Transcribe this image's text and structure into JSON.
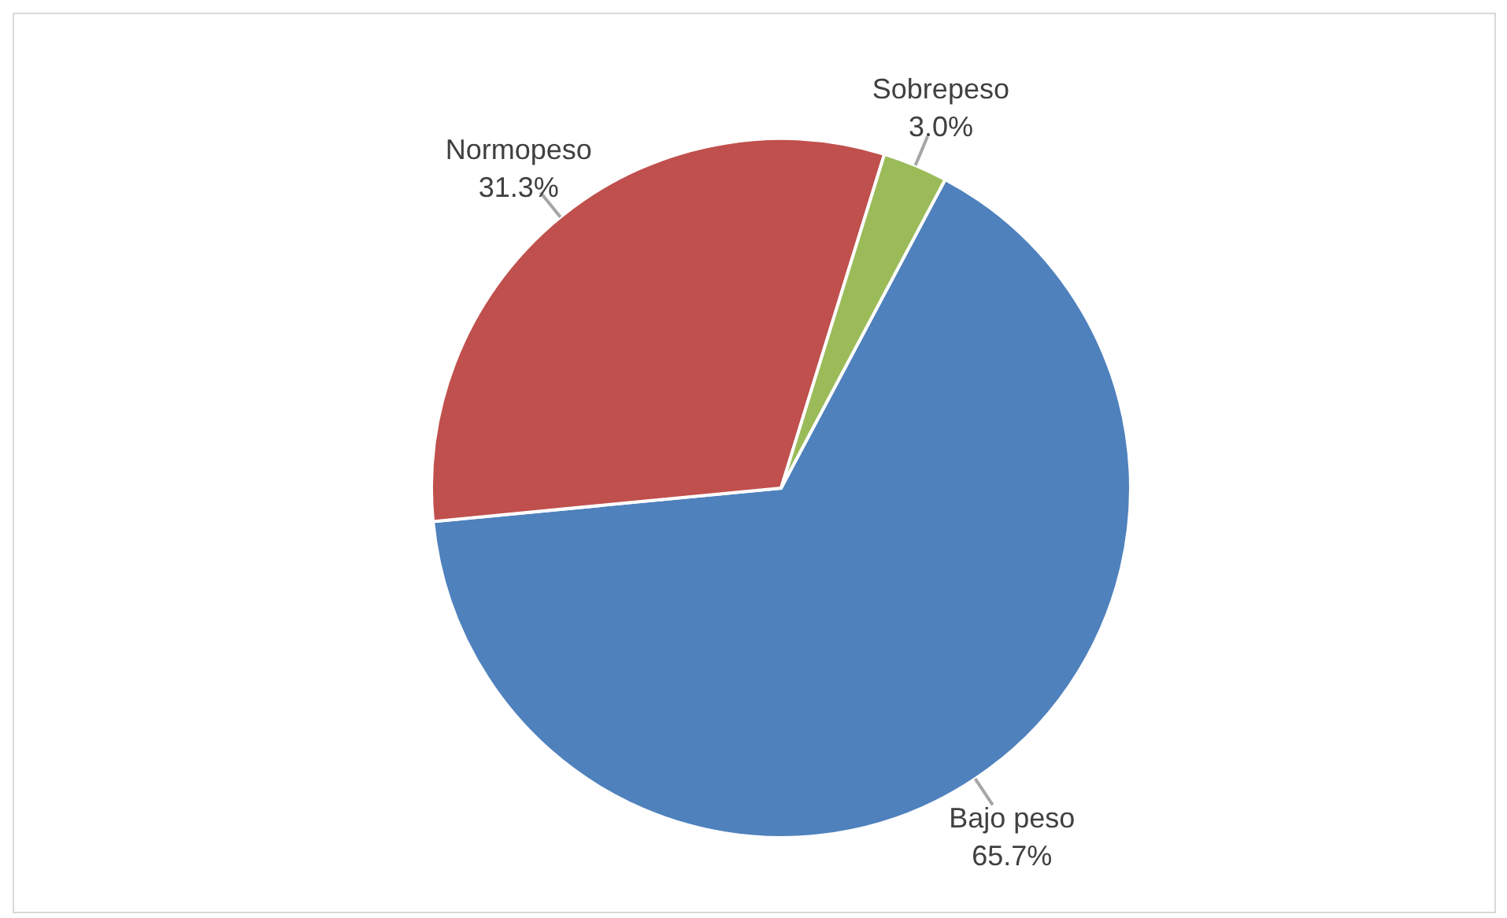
{
  "chart_data": {
    "type": "pie",
    "categories": [
      "Bajo peso",
      "Normopeso",
      "Sobrepeso"
    ],
    "values": [
      65.7,
      31.3,
      3.0
    ],
    "value_labels": [
      "65.7%",
      "31.3%",
      "3.0%"
    ],
    "colors": [
      "#4f81bd",
      "#c0504d",
      "#9bbb59"
    ],
    "legend": false
  }
}
